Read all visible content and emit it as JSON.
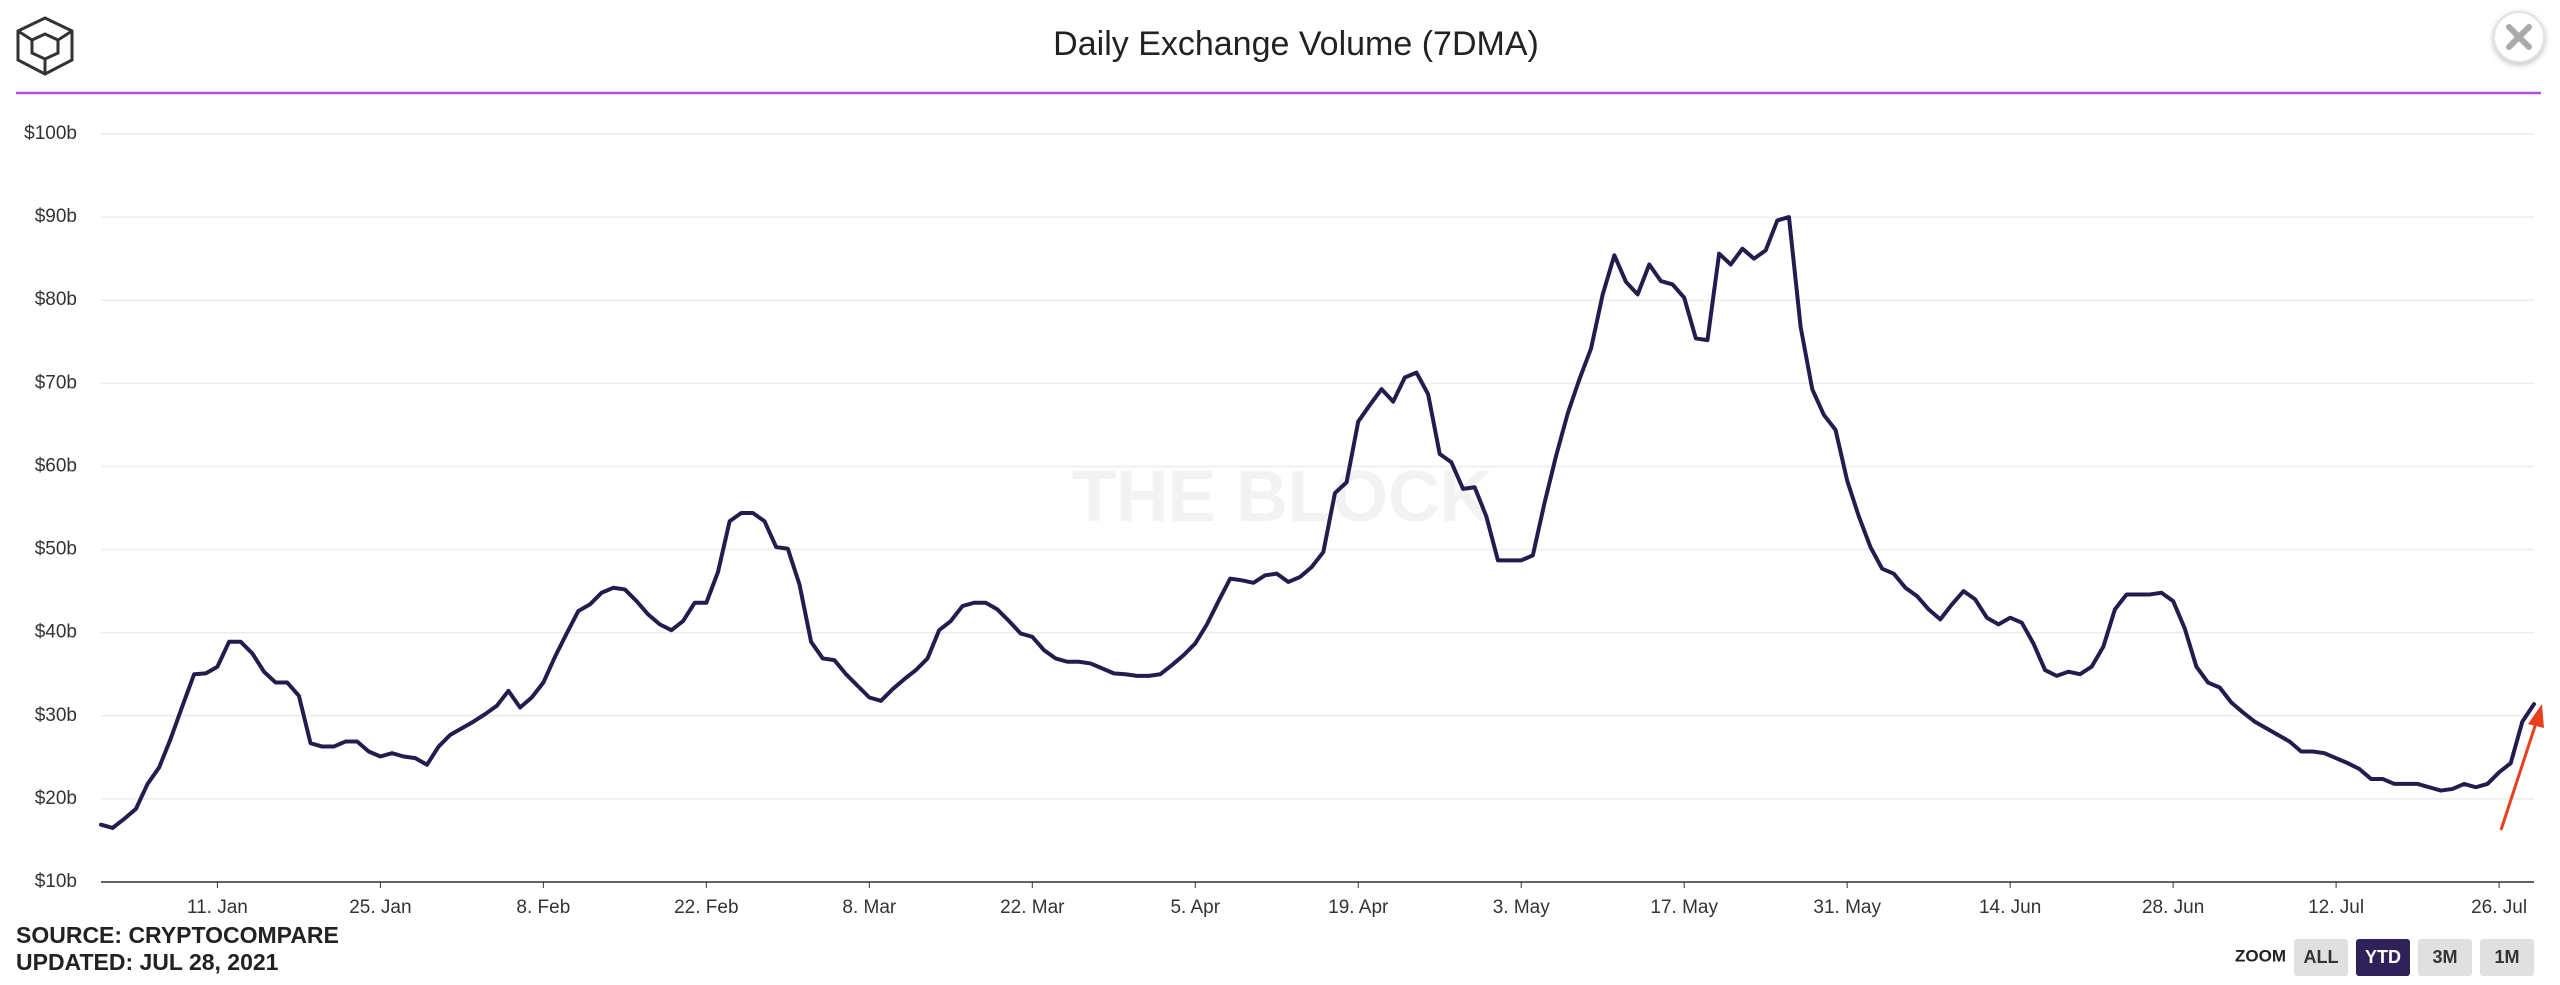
{
  "chart_data": {
    "type": "line",
    "title": "Daily Exchange Volume (7DMA)",
    "x": [
      1,
      2,
      3,
      4,
      5,
      6,
      7,
      8,
      9,
      10,
      11,
      12,
      13,
      14,
      15,
      16,
      17,
      18,
      19,
      20,
      21,
      22,
      23,
      24,
      25,
      26,
      27,
      28,
      29,
      30,
      31,
      32,
      33,
      34,
      35,
      36,
      37,
      38,
      39,
      40,
      41,
      42,
      43,
      44,
      45,
      46,
      47,
      48,
      49,
      50,
      51,
      52,
      53,
      54,
      55,
      56,
      57,
      58,
      59,
      60,
      61,
      62,
      63,
      64,
      65,
      66,
      67,
      68,
      69,
      70,
      71,
      72,
      73,
      74,
      75,
      76,
      77,
      78,
      79,
      80,
      81,
      82,
      83,
      84,
      85,
      86,
      87,
      88,
      89,
      90,
      91,
      92,
      93,
      94,
      95,
      96,
      97,
      98,
      99,
      100,
      101,
      102,
      103,
      104,
      105,
      106,
      107,
      108,
      109,
      110,
      111,
      112,
      113,
      114,
      115,
      116,
      117,
      118,
      119,
      120,
      121,
      122,
      123,
      124,
      125,
      126,
      127,
      128,
      129,
      130,
      131,
      132,
      133,
      134,
      135,
      136,
      137,
      138,
      139,
      140,
      141,
      142,
      143,
      144,
      145,
      146,
      147,
      148,
      149,
      150,
      151,
      152,
      153,
      154,
      155,
      156,
      157,
      158,
      159,
      160,
      161,
      162,
      163,
      164,
      165,
      166,
      167,
      168,
      169,
      170,
      171,
      172,
      173,
      174,
      175,
      176,
      177,
      178,
      179,
      180,
      181,
      182,
      183,
      184,
      185,
      186,
      187,
      188,
      189,
      190,
      191,
      192,
      193,
      194,
      195,
      196,
      197,
      198,
      199,
      200,
      201,
      202,
      203,
      204,
      205,
      206,
      207,
      208,
      209,
      210
    ],
    "values": [
      16.9,
      16.5,
      17.6,
      18.8,
      21.8,
      23.8,
      27.3,
      31.2,
      35,
      35.1,
      35.9,
      38.9,
      38.9,
      37.5,
      35.3,
      34,
      34,
      32.4,
      26.7,
      26.3,
      26.3,
      26.9,
      26.9,
      25.7,
      25.1,
      25.5,
      25.1,
      24.9,
      24.1,
      26.3,
      27.7,
      28.5,
      29.3,
      30.2,
      31.2,
      33,
      31,
      32.2,
      34,
      37.1,
      39.9,
      42.6,
      43.4,
      44.8,
      45.4,
      45.2,
      43.8,
      42.2,
      41,
      40.3,
      41.4,
      43.6,
      43.6,
      47.3,
      53.4,
      54.4,
      54.4,
      53.4,
      50.3,
      50.1,
      45.8,
      38.9,
      36.9,
      36.7,
      35,
      33.6,
      32.2,
      31.8,
      33.2,
      34.4,
      35.5,
      36.9,
      40.3,
      41.4,
      43.2,
      43.6,
      43.6,
      42.8,
      41.4,
      39.9,
      39.5,
      37.9,
      36.9,
      36.5,
      36.5,
      36.3,
      35.7,
      35.1,
      35,
      34.8,
      34.8,
      35,
      36.1,
      37.3,
      38.7,
      41,
      43.8,
      46.5,
      46.3,
      46,
      46.9,
      47.1,
      46.1,
      46.7,
      47.9,
      49.7,
      56.8,
      58.1,
      65.4,
      67.4,
      69.3,
      67.8,
      70.7,
      71.3,
      68.7,
      61.5,
      60.5,
      57.3,
      57.5,
      54,
      48.7,
      48.7,
      48.7,
      49.3,
      55.6,
      61.3,
      66.4,
      70.5,
      74.2,
      80.7,
      85.4,
      82.2,
      80.7,
      84.3,
      82.3,
      81.9,
      80.3,
      75.4,
      75.2,
      85.6,
      84.3,
      86.2,
      85,
      86,
      89.6,
      90,
      76.8,
      69.3,
      66.2,
      64.4,
      58.3,
      54,
      50.3,
      47.7,
      47.1,
      45.4,
      44.4,
      42.8,
      41.6,
      43.4,
      45,
      44,
      41.8,
      41,
      41.8,
      41.2,
      38.7,
      35.5,
      34.8,
      35.3,
      35,
      35.9,
      38.3,
      42.8,
      44.6,
      44.6,
      44.6,
      44.8,
      43.8,
      40.5,
      35.9,
      34,
      33.4,
      31.6,
      30.4,
      29.3,
      28.5,
      27.7,
      26.9,
      25.7,
      25.7,
      25.5,
      24.9,
      24.3,
      23.6,
      22.4,
      22.4,
      21.8,
      21.8,
      21.8,
      21.4,
      21,
      21.2,
      21.8,
      21.4,
      21.8,
      23.2,
      24.3,
      29.3,
      31.4
    ],
    "color": "#231d4f",
    "xlim": [
      1,
      210
    ],
    "xticks": [
      {
        "value": 11,
        "label": "11. Jan"
      },
      {
        "value": 25,
        "label": "25. Jan"
      },
      {
        "value": 39,
        "label": "8. Feb"
      },
      {
        "value": 53,
        "label": "22. Feb"
      },
      {
        "value": 67,
        "label": "8. Mar"
      },
      {
        "value": 81,
        "label": "22. Mar"
      },
      {
        "value": 95,
        "label": "5. Apr"
      },
      {
        "value": 109,
        "label": "19. Apr"
      },
      {
        "value": 123,
        "label": "3. May"
      },
      {
        "value": 137,
        "label": "17. May"
      },
      {
        "value": 151,
        "label": "31. May"
      },
      {
        "value": 165,
        "label": "14. Jun"
      },
      {
        "value": 179,
        "label": "28. Jun"
      },
      {
        "value": 193,
        "label": "12. Jul"
      },
      {
        "value": 207,
        "label": "26. Jul"
      }
    ],
    "ylim": [
      10,
      100
    ],
    "yticks": [
      {
        "value": 10,
        "label": "$10b"
      },
      {
        "value": 20,
        "label": "$20b"
      },
      {
        "value": 30,
        "label": "$30b"
      },
      {
        "value": 40,
        "label": "$40b"
      },
      {
        "value": 50,
        "label": "$50b"
      },
      {
        "value": 60,
        "label": "$60b"
      },
      {
        "value": 70,
        "label": "$70b"
      },
      {
        "value": 80,
        "label": "$80b"
      },
      {
        "value": 90,
        "label": "$90b"
      },
      {
        "value": 100,
        "label": "$100b"
      }
    ],
    "grid": true
  },
  "watermark": "THE BLOCK",
  "source": "SOURCE: CRYPTOCOMPARE",
  "updated": "UPDATED: JUL 28, 2021",
  "zoom": {
    "label": "ZOOM",
    "buttons": [
      "ALL",
      "YTD",
      "3M",
      "1M"
    ],
    "active": 1
  }
}
